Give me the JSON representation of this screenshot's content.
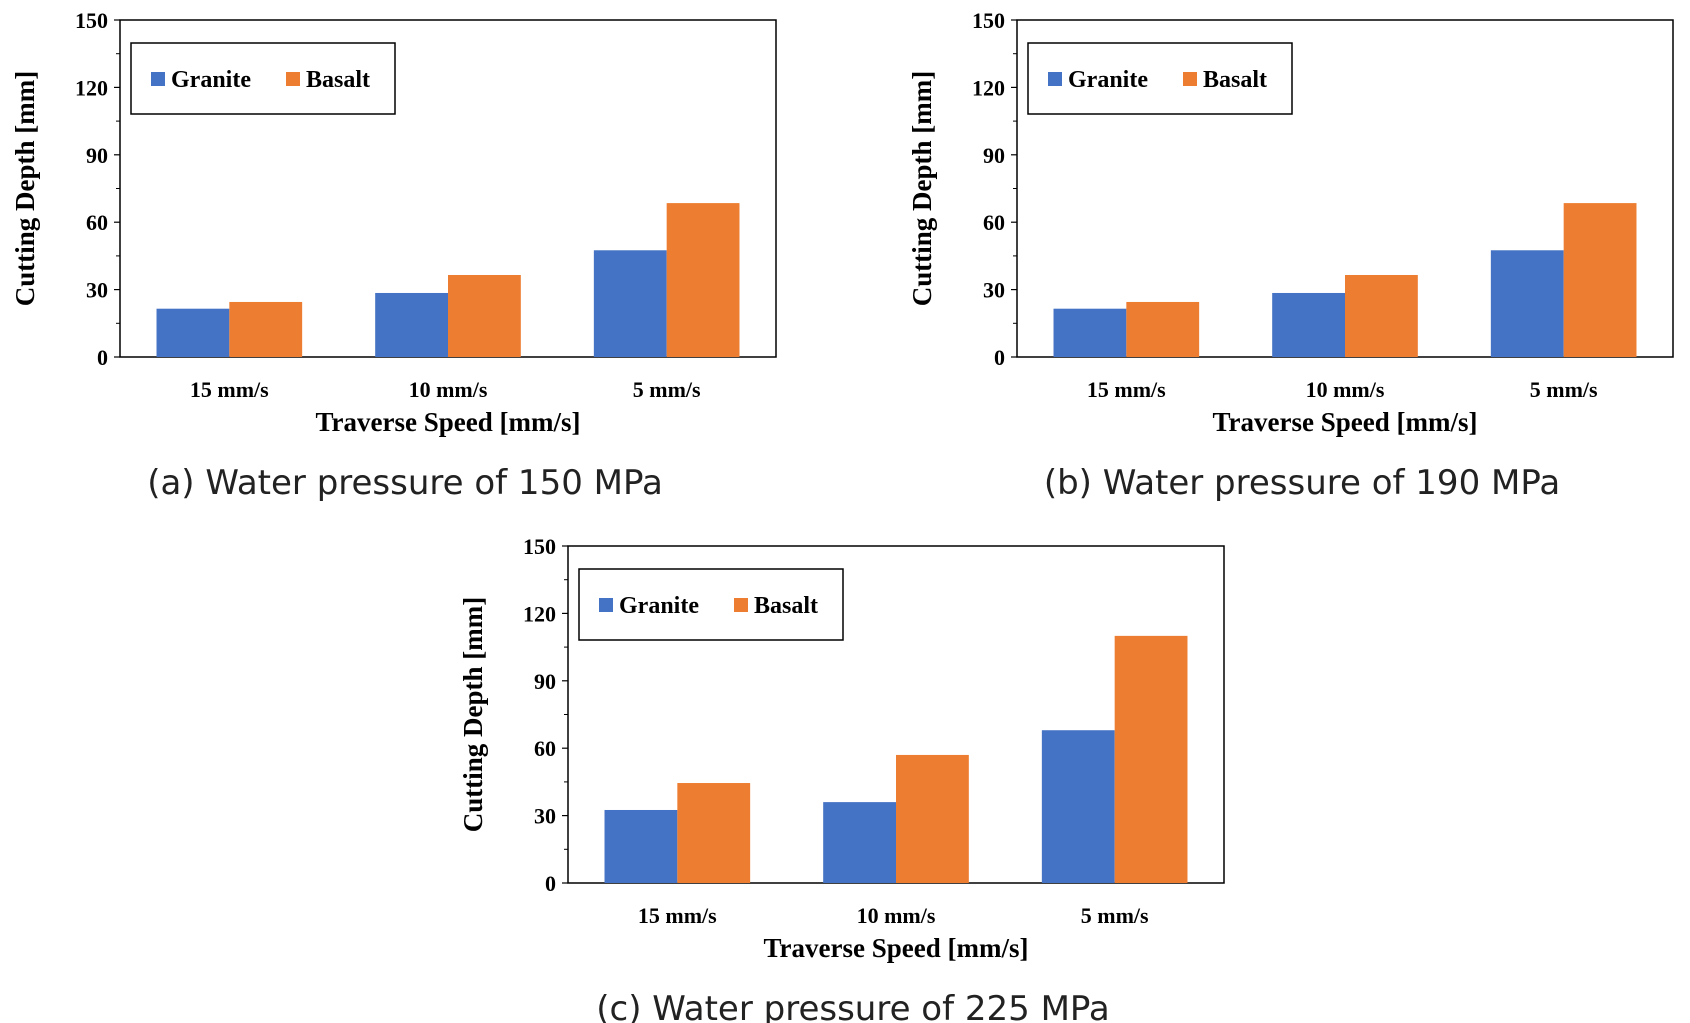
{
  "chart_data": [
    {
      "type": "bar",
      "caption": "(a) Water pressure of 150 MPa",
      "categories": [
        "15 mm/s",
        "10 mm/s",
        "5 mm/s"
      ],
      "series": [
        {
          "name": "Granite",
          "color": "#4472C4",
          "values": [
            21.5,
            28.5,
            47.5
          ]
        },
        {
          "name": "Basalt",
          "color": "#ED7D31",
          "values": [
            24.5,
            36.5,
            68.5
          ]
        }
      ],
      "xlabel": "Traverse Speed [mm/s]",
      "ylabel": "Cutting Depth [mm]",
      "ylim": [
        0,
        150
      ],
      "yticks": [
        0,
        30,
        60,
        90,
        120,
        150
      ],
      "grid": false,
      "legend_position": "top-left"
    },
    {
      "type": "bar",
      "caption": "(b) Water pressure of 190 MPa",
      "categories": [
        "15 mm/s",
        "10 mm/s",
        "5 mm/s"
      ],
      "series": [
        {
          "name": "Granite",
          "color": "#4472C4",
          "values": [
            21.5,
            28.5,
            47.5
          ]
        },
        {
          "name": "Basalt",
          "color": "#ED7D31",
          "values": [
            24.5,
            36.5,
            68.5
          ]
        }
      ],
      "xlabel": "Traverse Speed [mm/s]",
      "ylabel": "Cutting Depth [mm]",
      "ylim": [
        0,
        150
      ],
      "yticks": [
        0,
        30,
        60,
        90,
        120,
        150
      ],
      "grid": false,
      "legend_position": "top-left"
    },
    {
      "type": "bar",
      "caption": "(c) Water pressure of 225 MPa",
      "categories": [
        "15 mm/s",
        "10 mm/s",
        "5 mm/s"
      ],
      "series": [
        {
          "name": "Granite",
          "color": "#4472C4",
          "values": [
            32.5,
            36,
            68
          ]
        },
        {
          "name": "Basalt",
          "color": "#ED7D31",
          "values": [
            44.5,
            57,
            110
          ]
        }
      ],
      "xlabel": "Traverse Speed [mm/s]",
      "ylabel": "Cutting Depth [mm]",
      "ylim": [
        0,
        150
      ],
      "yticks": [
        0,
        30,
        60,
        90,
        120,
        150
      ],
      "grid": false,
      "legend_position": "top-left"
    }
  ]
}
